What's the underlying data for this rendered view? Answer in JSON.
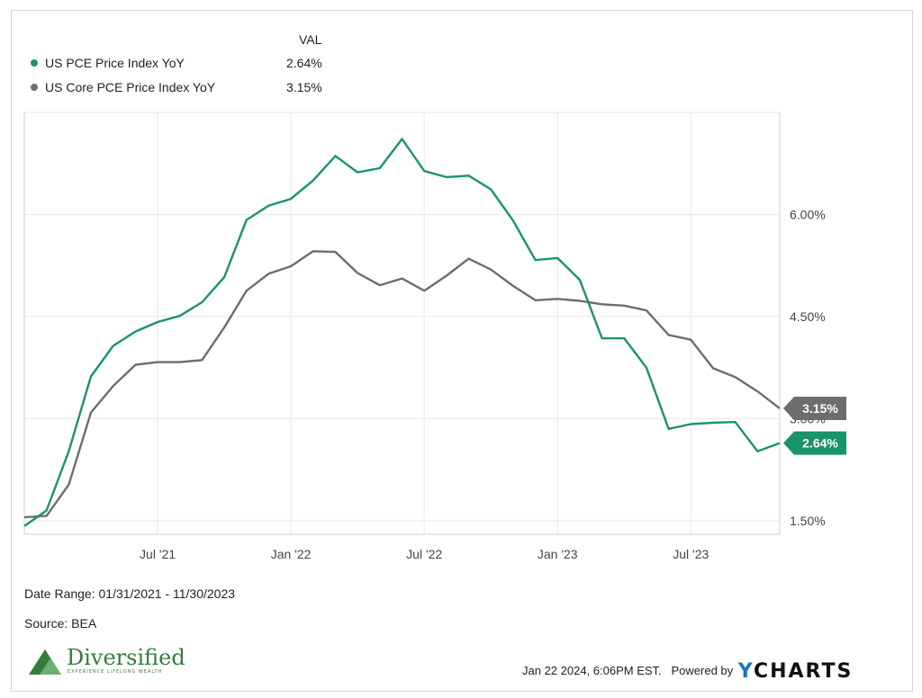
{
  "legend": {
    "header": "VAL",
    "items": [
      {
        "label": "US PCE Price Index YoY",
        "value": "2.64%",
        "color": "#1a9468"
      },
      {
        "label": "US Core PCE Price Index YoY",
        "value": "3.15%",
        "color": "#6d6d6d"
      }
    ]
  },
  "chart_data": {
    "type": "line",
    "x": [
      "2021-01",
      "2021-02",
      "2021-03",
      "2021-04",
      "2021-05",
      "2021-06",
      "2021-07",
      "2021-08",
      "2021-09",
      "2021-10",
      "2021-11",
      "2021-12",
      "2022-01",
      "2022-02",
      "2022-03",
      "2022-04",
      "2022-05",
      "2022-06",
      "2022-07",
      "2022-08",
      "2022-09",
      "2022-10",
      "2022-11",
      "2022-12",
      "2023-01",
      "2023-02",
      "2023-03",
      "2023-04",
      "2023-05",
      "2023-06",
      "2023-07",
      "2023-08",
      "2023-09",
      "2023-10",
      "2023-11"
    ],
    "series": [
      {
        "name": "US PCE Price Index YoY",
        "color": "#1a9468",
        "values": [
          1.42,
          1.65,
          2.52,
          3.62,
          4.07,
          4.28,
          4.42,
          4.51,
          4.71,
          5.08,
          5.92,
          6.13,
          6.23,
          6.5,
          6.86,
          6.62,
          6.68,
          7.11,
          6.64,
          6.55,
          6.57,
          6.37,
          5.91,
          5.33,
          5.36,
          5.04,
          4.18,
          4.18,
          3.75,
          2.85,
          2.92,
          2.94,
          2.95,
          2.52,
          2.64
        ]
      },
      {
        "name": "US Core PCE Price Index YoY",
        "color": "#6d6d6d",
        "values": [
          1.55,
          1.57,
          2.03,
          3.09,
          3.48,
          3.79,
          3.83,
          3.83,
          3.86,
          4.34,
          4.88,
          5.13,
          5.24,
          5.46,
          5.45,
          5.14,
          4.96,
          5.06,
          4.88,
          5.1,
          5.35,
          5.19,
          4.95,
          4.74,
          4.76,
          4.73,
          4.68,
          4.66,
          4.59,
          4.23,
          4.16,
          3.74,
          3.61,
          3.4,
          3.15
        ]
      }
    ],
    "x_ticks": [
      {
        "label": "Jul '21",
        "at": "2021-07"
      },
      {
        "label": "Jan '22",
        "at": "2022-01"
      },
      {
        "label": "Jul '22",
        "at": "2022-07"
      },
      {
        "label": "Jan '23",
        "at": "2023-01"
      },
      {
        "label": "Jul '23",
        "at": "2023-07"
      }
    ],
    "y_ticks": [
      {
        "label": "1.50%",
        "value": 1.5
      },
      {
        "label": "3.00%",
        "value": 3.0
      },
      {
        "label": "4.50%",
        "value": 4.5
      },
      {
        "label": "6.00%",
        "value": 6.0
      }
    ],
    "end_labels": [
      {
        "text": "3.15%",
        "value": 3.15,
        "color": "#6d6d6d"
      },
      {
        "text": "2.64%",
        "value": 2.64,
        "color": "#1a9468"
      }
    ],
    "ylim": [
      1.3,
      7.5
    ],
    "grid": true,
    "y_axis_position": "right",
    "legend_position": "top-left"
  },
  "footer": {
    "date_range": "Date Range: 01/31/2021 - 11/30/2023",
    "source": "Source: BEA",
    "timestamp": "Jan 22 2024, 6:06PM EST.",
    "powered_by": "Powered by",
    "brand_y": "Y",
    "brand_rest": "CHARTS"
  },
  "logo": {
    "name": "Diversified",
    "tagline": "EXPERIENCE LIFELONG WEALTH",
    "color": "#2f7d3a"
  }
}
